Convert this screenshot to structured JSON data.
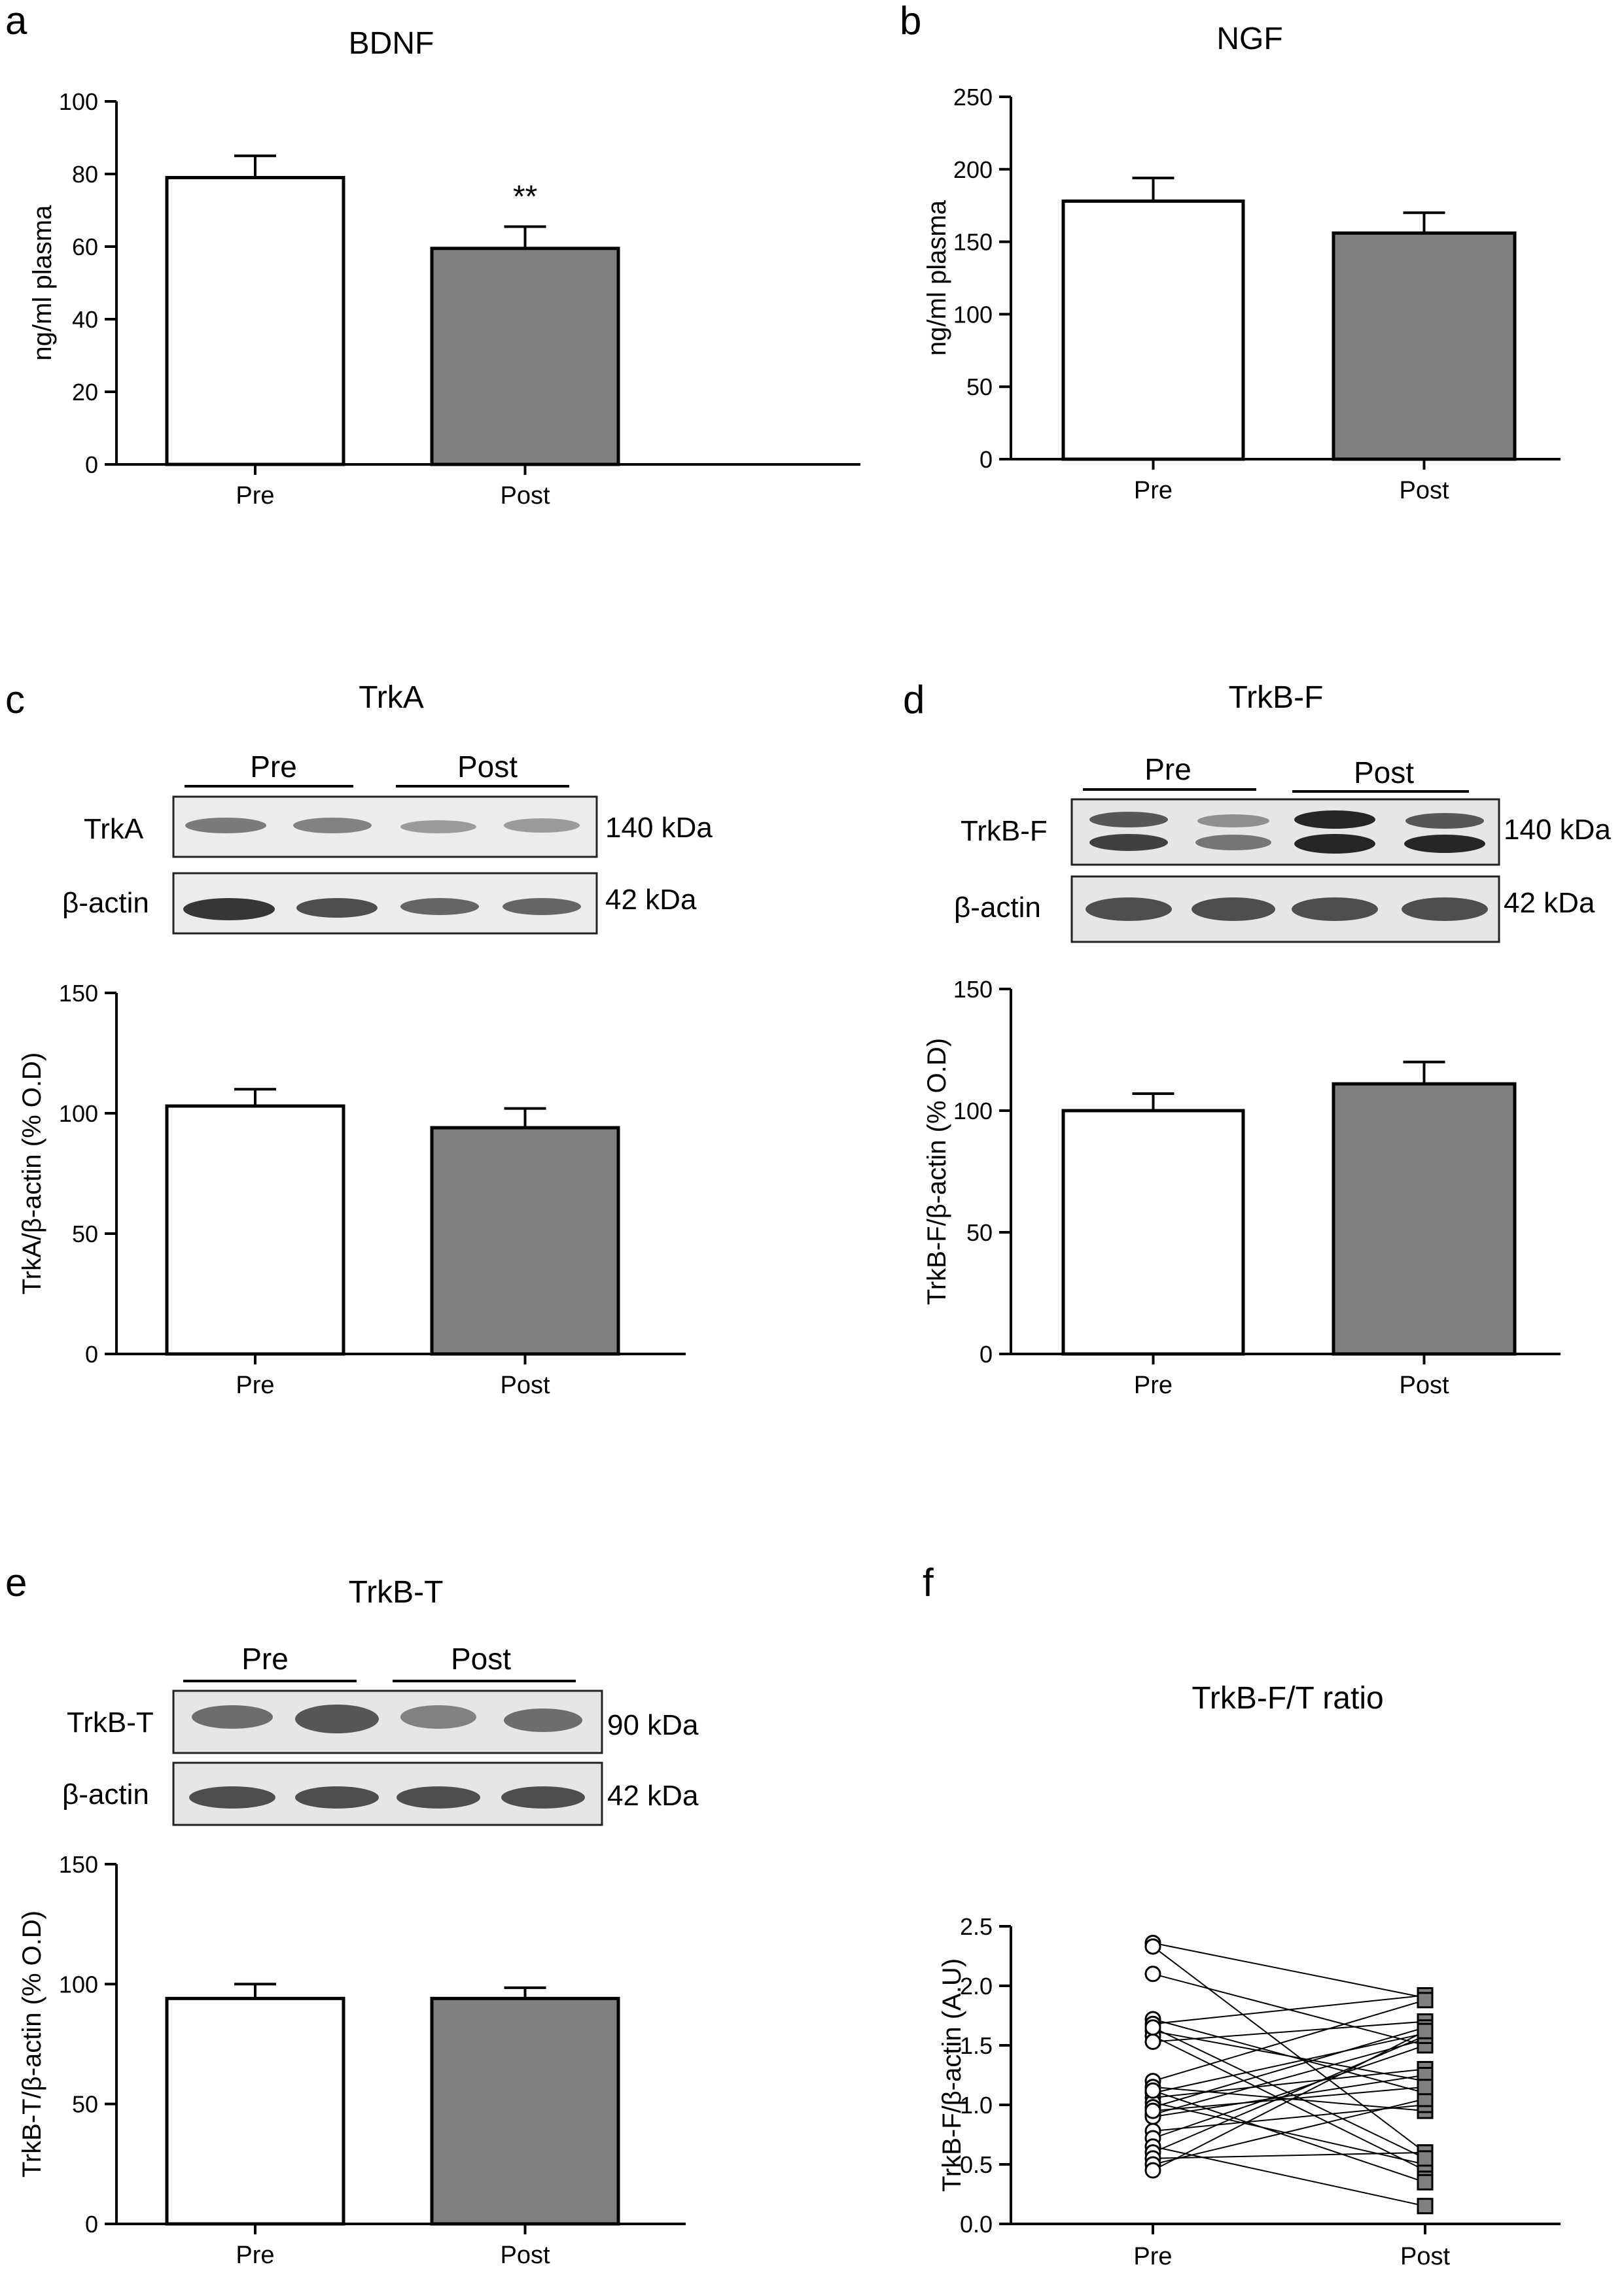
{
  "panels": {
    "a": {
      "label": "a"
    },
    "b": {
      "label": "b"
    },
    "c": {
      "label": "c",
      "blot_title": "TrkA",
      "group_pre": "Pre",
      "group_post": "Post",
      "row1_name": "TrkA",
      "row1_size": "140 kDa",
      "row2_name": "β-actin",
      "row2_size": "42 kDa"
    },
    "d": {
      "label": "d",
      "blot_title": "TrkB-F",
      "group_pre": "Pre",
      "group_post": "Post",
      "row1_name": "TrkB-F",
      "row1_size": "140 kDa",
      "row2_name": "β-actin",
      "row2_size": "42 kDa"
    },
    "e": {
      "label": "e",
      "blot_title": "TrkB-T",
      "group_pre": "Pre",
      "group_post": "Post",
      "row1_name": "TrkB-T",
      "row1_size": "90 kDa",
      "row2_name": "β-actin",
      "row2_size": "42 kDa"
    },
    "f": {
      "label": "f"
    }
  },
  "colors": {
    "pre_bar": "#ffffff",
    "post_bar": "#808080",
    "outline": "#000000"
  },
  "chart_data": [
    {
      "id": "a",
      "type": "bar",
      "title": "BDNF",
      "categories": [
        "Pre",
        "Post"
      ],
      "values": [
        79,
        59.5
      ],
      "errors": [
        6,
        6
      ],
      "ylabel": "ng/ml plasma",
      "ylim": [
        0,
        100
      ],
      "yticks": [
        0,
        20,
        40,
        60,
        80,
        100
      ],
      "annotation": {
        "category": "Post",
        "text": "**"
      },
      "grid": false
    },
    {
      "id": "b",
      "type": "bar",
      "title": "NGF",
      "categories": [
        "Pre",
        "Post"
      ],
      "values": [
        178,
        156
      ],
      "errors": [
        16,
        14
      ],
      "ylabel": "ng/ml plasma",
      "ylim": [
        0,
        250
      ],
      "yticks": [
        0,
        50,
        100,
        150,
        200,
        250
      ],
      "grid": false
    },
    {
      "id": "c",
      "type": "bar",
      "title": "",
      "categories": [
        "Pre",
        "Post"
      ],
      "values": [
        103,
        94
      ],
      "errors": [
        7,
        8
      ],
      "ylabel": "TrkA/β-actin (% O.D)",
      "ylim": [
        0,
        150
      ],
      "yticks": [
        0,
        50,
        100,
        150
      ],
      "grid": false
    },
    {
      "id": "d",
      "type": "bar",
      "title": "",
      "categories": [
        "Pre",
        "Post"
      ],
      "values": [
        100,
        111
      ],
      "errors": [
        7,
        9
      ],
      "ylabel": "TrkB-F/β-actin (% O.D)",
      "ylim": [
        0,
        150
      ],
      "yticks": [
        0,
        50,
        100,
        150
      ],
      "grid": false
    },
    {
      "id": "e",
      "type": "bar",
      "title": "",
      "categories": [
        "Pre",
        "Post"
      ],
      "values": [
        94,
        94
      ],
      "errors": [
        6,
        4.5
      ],
      "ylabel": "TrkB-T/β-actin (% O.D)",
      "ylim": [
        0,
        150
      ],
      "yticks": [
        0,
        50,
        100,
        150
      ],
      "grid": false
    },
    {
      "id": "f",
      "type": "scatter",
      "title": "TrkB-F/T ratio",
      "categories": [
        "Pre",
        "Post"
      ],
      "paired": true,
      "ylabel": "TrkB-F/β-actin (A.U)",
      "ylim": [
        0,
        2.5
      ],
      "yticks": [
        0.0,
        0.5,
        1.0,
        1.5,
        2.0,
        2.5
      ],
      "pairs": [
        [
          2.36,
          1.9
        ],
        [
          2.33,
          0.6
        ],
        [
          2.1,
          1.5
        ],
        [
          1.72,
          1.1
        ],
        [
          1.68,
          1.92
        ],
        [
          1.62,
          1.2
        ],
        [
          1.58,
          0.45
        ],
        [
          1.53,
          1.7
        ],
        [
          1.2,
          1.88
        ],
        [
          1.15,
          0.95
        ],
        [
          1.1,
          1.6
        ],
        [
          1.06,
          1.3
        ],
        [
          1.02,
          0.5
        ],
        [
          0.98,
          1.65
        ],
        [
          0.92,
          1.55
        ],
        [
          0.9,
          1.25
        ],
        [
          0.78,
          1.0
        ],
        [
          0.72,
          1.5
        ],
        [
          0.65,
          0.15
        ],
        [
          0.6,
          1.58
        ],
        [
          0.55,
          0.6
        ],
        [
          0.5,
          1.05
        ],
        [
          0.45,
          1.62
        ],
        [
          1.65,
          0.55
        ],
        [
          1.12,
          0.35
        ],
        [
          0.95,
          1.15
        ]
      ],
      "grid": false
    }
  ]
}
